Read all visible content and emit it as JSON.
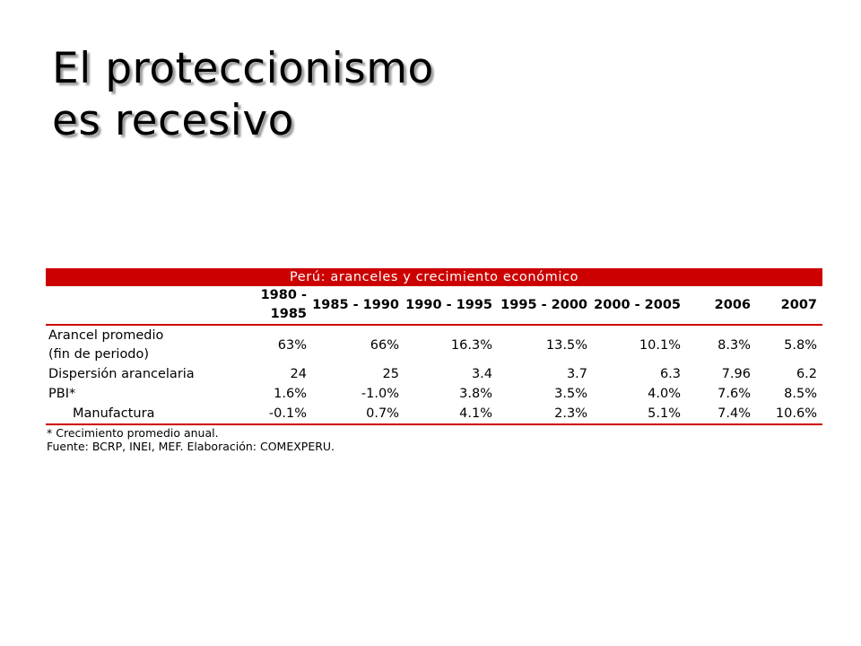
{
  "title": {
    "line1": "El proteccionismo",
    "line2": "es recesivo"
  },
  "table": {
    "caption": "Perú: aranceles y crecimiento económico",
    "columns": [
      "1980 - 1985",
      "1985 - 1990",
      "1990 - 1995",
      "1995 - 2000",
      "2000 - 2005",
      "2006",
      "2007"
    ],
    "rows": [
      {
        "label_line1": "Arancel promedio",
        "label_line2": "(fin de periodo)",
        "values": [
          "63%",
          "66%",
          "16.3%",
          "13.5%",
          "10.1%",
          "8.3%",
          "5.8%"
        ]
      },
      {
        "label": "Dispersión arancelaria",
        "values": [
          "24",
          "25",
          "3.4",
          "3.7",
          "6.3",
          "7.96",
          "6.2"
        ]
      },
      {
        "label": "PBI*",
        "values": [
          "1.6%",
          "-1.0%",
          "3.8%",
          "3.5%",
          "4.0%",
          "7.6%",
          "8.5%"
        ]
      },
      {
        "label": "Manufactura",
        "values": [
          "-0.1%",
          "0.7%",
          "4.1%",
          "2.3%",
          "5.1%",
          "7.4%",
          "10.6%"
        ]
      }
    ],
    "note": "* Crecimiento promedio anual.",
    "source": "Fuente: BCRP, INEI, MEF. Elaboración: COMEXPERU."
  },
  "colors": {
    "accent": "#cc0000",
    "text": "#000000",
    "background": "#ffffff"
  }
}
